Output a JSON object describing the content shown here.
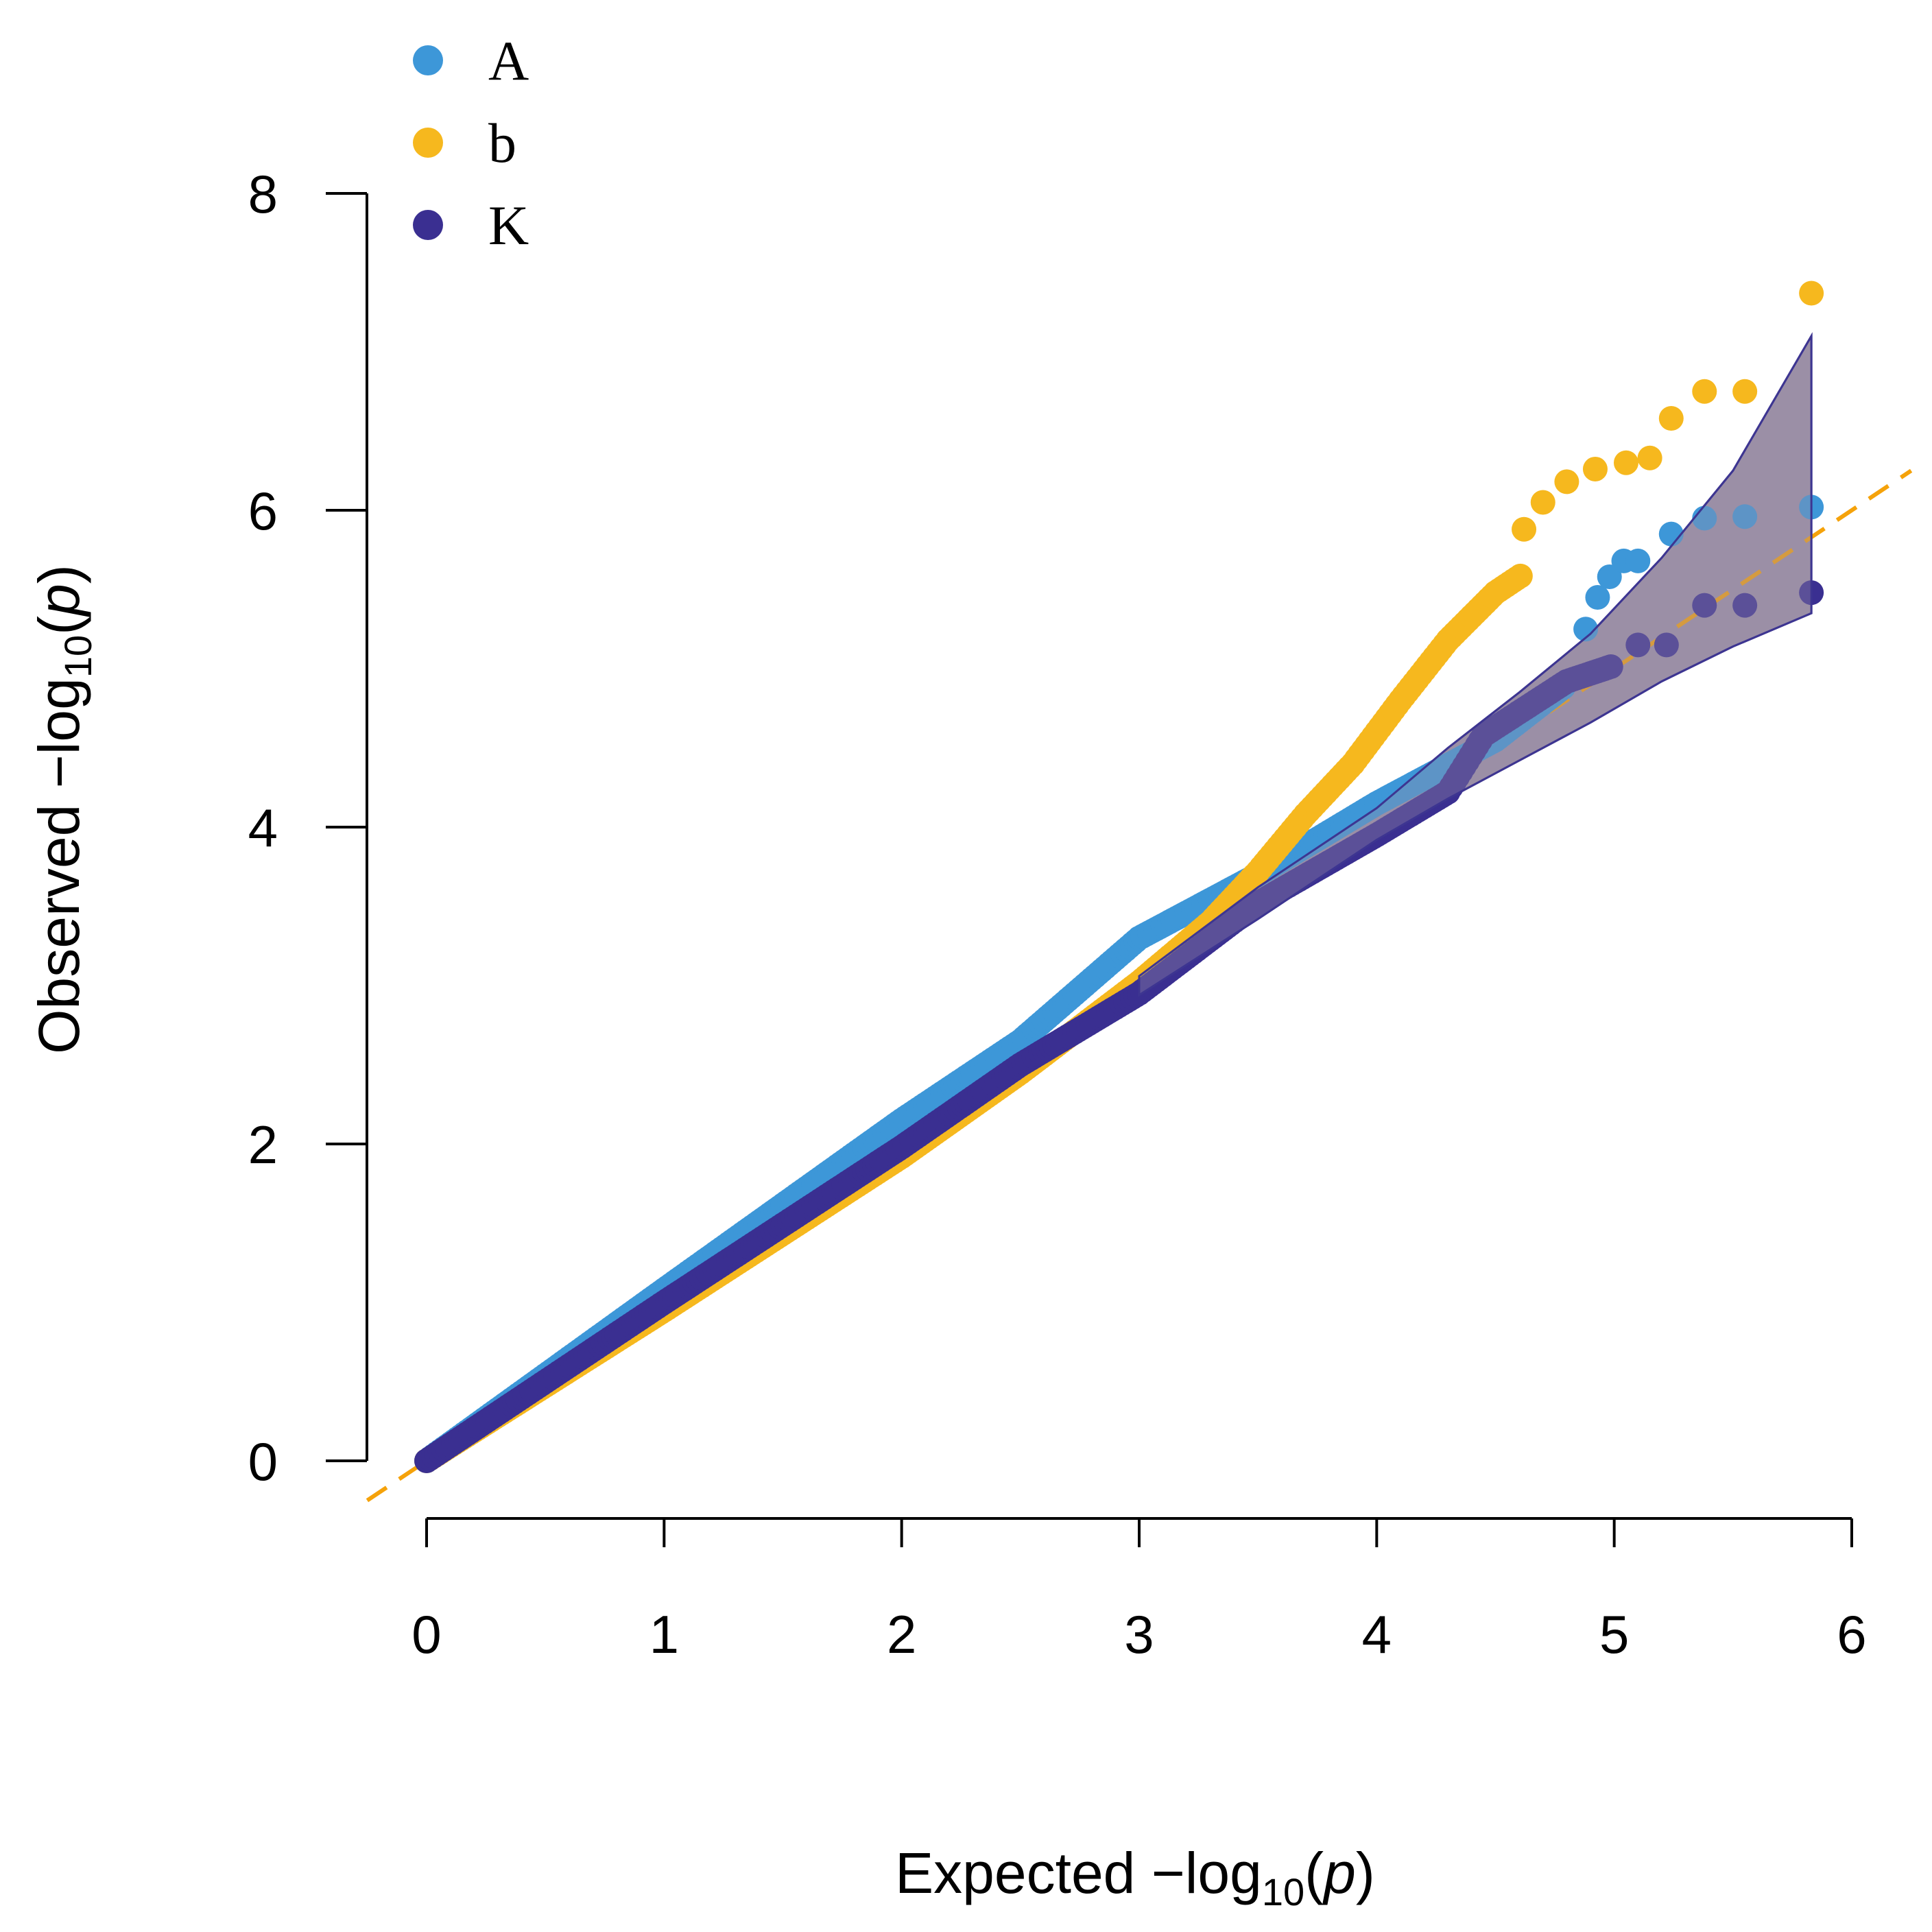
{
  "chart_data": {
    "type": "scatter",
    "title": "",
    "xlabel": {
      "prefix": "Expected  −log",
      "sub": "10",
      "open": "(",
      "var": "p",
      "close": ")"
    },
    "ylabel": {
      "prefix": "Observed  −log",
      "sub": "10",
      "open": "(",
      "var": "p",
      "close": ")"
    },
    "xlim": [
      0,
      6
    ],
    "ylim": [
      0,
      8
    ],
    "x_ticks": [
      "0",
      "1",
      "2",
      "3",
      "4",
      "5",
      "6"
    ],
    "y_ticks": [
      "0",
      "2",
      "4",
      "6",
      "8"
    ],
    "grid": false,
    "legend_position": "top-left",
    "reference_line": {
      "slope": 1,
      "intercept": 0,
      "style": "dashed",
      "color": "#f5a20a"
    },
    "confidence_band": {
      "color": "#9b8fa6",
      "edge_color": "#3d3591",
      "x": [
        3.0,
        3.5,
        4.0,
        4.3,
        4.6,
        4.9,
        5.2,
        5.5,
        5.83
      ],
      "upper": [
        3.06,
        3.62,
        4.12,
        4.5,
        4.85,
        5.22,
        5.7,
        6.25,
        7.1
      ],
      "lower": [
        2.94,
        3.42,
        3.92,
        4.18,
        4.42,
        4.66,
        4.92,
        5.14,
        5.35
      ]
    },
    "series": [
      {
        "name": "A",
        "color": "#3d97d8",
        "curve": [
          [
            0,
            0
          ],
          [
            1,
            1.08
          ],
          [
            2,
            2.15
          ],
          [
            2.5,
            2.65
          ],
          [
            3.0,
            3.3
          ],
          [
            3.5,
            3.7
          ],
          [
            4.0,
            4.15
          ],
          [
            4.5,
            4.55
          ],
          [
            4.8,
            4.9
          ]
        ],
        "points": [
          [
            4.88,
            5.25
          ],
          [
            4.93,
            5.45
          ],
          [
            4.98,
            5.58
          ],
          [
            5.04,
            5.68
          ],
          [
            5.1,
            5.68
          ],
          [
            5.24,
            5.85
          ],
          [
            5.38,
            5.95
          ],
          [
            5.55,
            5.96
          ],
          [
            5.83,
            6.02
          ]
        ]
      },
      {
        "name": "b",
        "color": "#f6b81e",
        "curve": [
          [
            0,
            0
          ],
          [
            1,
            0.95
          ],
          [
            2,
            1.92
          ],
          [
            2.5,
            2.45
          ],
          [
            3.0,
            3.02
          ],
          [
            3.3,
            3.4
          ],
          [
            3.5,
            3.72
          ],
          [
            3.7,
            4.08
          ],
          [
            3.9,
            4.4
          ],
          [
            4.1,
            4.8
          ],
          [
            4.3,
            5.18
          ],
          [
            4.5,
            5.48
          ],
          [
            4.62,
            5.6
          ]
        ],
        "points": [
          [
            4.62,
            5.88
          ],
          [
            4.7,
            6.05
          ],
          [
            4.8,
            6.18
          ],
          [
            4.92,
            6.26
          ],
          [
            5.05,
            6.3
          ],
          [
            5.15,
            6.33
          ],
          [
            5.24,
            6.58
          ],
          [
            5.38,
            6.75
          ],
          [
            5.55,
            6.75
          ],
          [
            5.83,
            7.37
          ]
        ]
      },
      {
        "name": "K",
        "color": "#3a2f91",
        "curve": [
          [
            0,
            0
          ],
          [
            1,
            1.0
          ],
          [
            2,
            1.98
          ],
          [
            2.5,
            2.5
          ],
          [
            3.0,
            2.95
          ],
          [
            3.5,
            3.52
          ],
          [
            4.0,
            3.95
          ],
          [
            4.3,
            4.22
          ],
          [
            4.45,
            4.58
          ],
          [
            4.8,
            4.92
          ],
          [
            5.0,
            5.02
          ]
        ],
        "points": [
          [
            5.1,
            5.15
          ],
          [
            5.22,
            5.15
          ],
          [
            5.38,
            5.4
          ],
          [
            5.55,
            5.4
          ],
          [
            5.83,
            5.48
          ]
        ]
      }
    ]
  }
}
